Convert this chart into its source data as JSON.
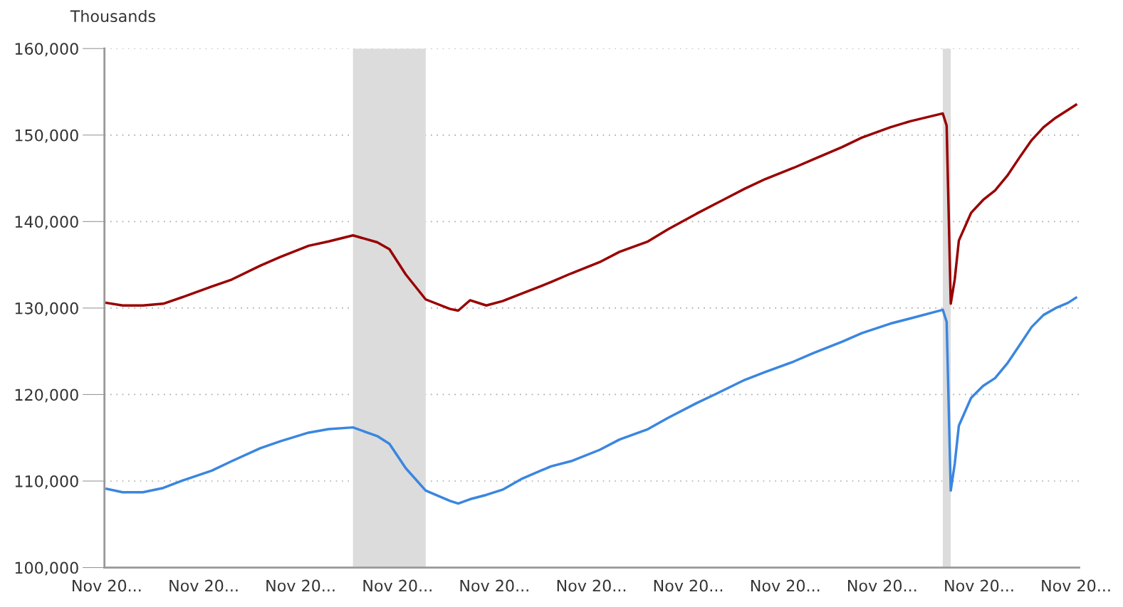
{
  "chart_data": {
    "type": "line",
    "ylabel": "Thousands",
    "x": [
      "2002-11",
      "2003-03",
      "2003-08",
      "2004-01",
      "2004-06",
      "2005-01",
      "2005-06",
      "2006-01",
      "2006-06",
      "2007-01",
      "2007-06",
      "2007-12",
      "2008-06",
      "2008-09",
      "2009-01",
      "2009-06",
      "2009-12",
      "2010-02",
      "2010-05",
      "2010-09",
      "2011-01",
      "2011-06",
      "2012-01",
      "2012-06",
      "2013-01",
      "2013-06",
      "2014-01",
      "2014-06",
      "2015-01",
      "2015-06",
      "2016-01",
      "2016-06",
      "2017-01",
      "2017-06",
      "2018-01",
      "2018-06",
      "2019-01",
      "2019-06",
      "2020-02",
      "2020-03",
      "2020-04",
      "2020-05",
      "2020-06",
      "2020-09",
      "2020-12",
      "2021-03",
      "2021-06",
      "2021-09",
      "2021-12",
      "2022-03",
      "2022-06",
      "2022-09",
      "2022-11"
    ],
    "series": [
      {
        "color": "#990000",
        "values": [
          130600,
          130300,
          130300,
          130500,
          131300,
          132500,
          133300,
          134900,
          135900,
          137200,
          137700,
          138400,
          137600,
          136800,
          133900,
          131000,
          129900,
          129700,
          130900,
          130300,
          130800,
          131700,
          133000,
          134000,
          135300,
          136500,
          137700,
          139100,
          140900,
          142100,
          143800,
          144900,
          146200,
          147200,
          148600,
          149700,
          150900,
          151600,
          152500,
          151100,
          130500,
          133300,
          137800,
          141000,
          142500,
          143600,
          145300,
          147400,
          149400,
          150900,
          152000,
          152900,
          153500
        ]
      },
      {
        "color": "#3a86e0",
        "values": [
          109100,
          108700,
          108700,
          109200,
          110100,
          111200,
          112300,
          113800,
          114600,
          115600,
          116000,
          116200,
          115200,
          114300,
          111500,
          108900,
          107700,
          107400,
          107900,
          108400,
          109000,
          110300,
          111700,
          112300,
          113600,
          114800,
          116000,
          117300,
          119000,
          120100,
          121700,
          122600,
          123800,
          124800,
          126100,
          127100,
          128200,
          128800,
          129800,
          128400,
          108900,
          112000,
          116400,
          119600,
          121000,
          121900,
          123600,
          125700,
          127800,
          129200,
          130000,
          130600,
          131200
        ]
      }
    ],
    "xlim": [
      "2002-10-15",
      "2022-11-25"
    ],
    "xticks": [
      {
        "value": "2002-11",
        "label": "Nov 20..."
      },
      {
        "value": "2004-11",
        "label": "Nov 20..."
      },
      {
        "value": "2006-11",
        "label": "Nov 20..."
      },
      {
        "value": "2008-11",
        "label": "Nov 20..."
      },
      {
        "value": "2010-11",
        "label": "Nov 20..."
      },
      {
        "value": "2012-11",
        "label": "Nov 20..."
      },
      {
        "value": "2014-11",
        "label": "Nov 20..."
      },
      {
        "value": "2016-11",
        "label": "Nov 20..."
      },
      {
        "value": "2018-11",
        "label": "Nov 20..."
      },
      {
        "value": "2020-11",
        "label": "Nov 20..."
      },
      {
        "value": "2022-11",
        "label": "Nov 20..."
      }
    ],
    "ylim": [
      100000,
      160000
    ],
    "yticks": [
      {
        "value": 100000,
        "label": "100,000"
      },
      {
        "value": 110000,
        "label": "110,000"
      },
      {
        "value": 120000,
        "label": "120,000"
      },
      {
        "value": 130000,
        "label": "130,000"
      },
      {
        "value": 140000,
        "label": "140,000"
      },
      {
        "value": 150000,
        "label": "150,000"
      },
      {
        "value": 160000,
        "label": "160,000"
      }
    ],
    "bands": [
      {
        "axis": "x",
        "from": "2007-12",
        "to": "2009-06",
        "color": "#dcdcdc"
      },
      {
        "axis": "x",
        "from": "2020-02",
        "to": "2020-04",
        "color": "#dcdcdc"
      }
    ],
    "grid": "y",
    "legend": false,
    "marker": "none",
    "line_style": "solid"
  }
}
